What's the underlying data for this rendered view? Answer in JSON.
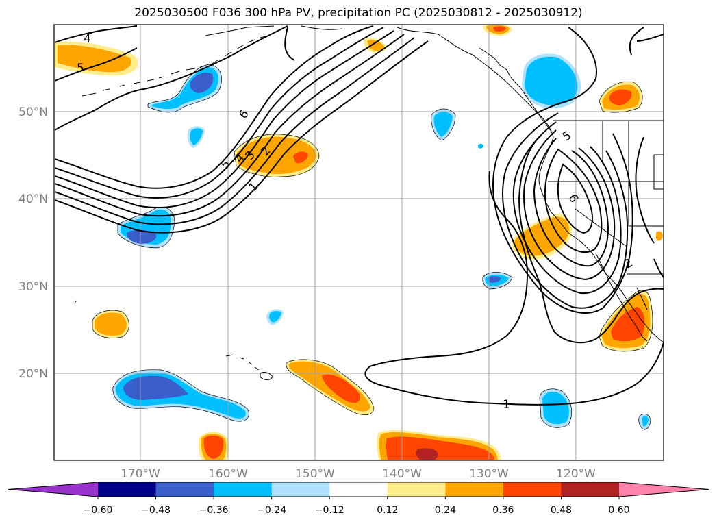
{
  "title": "2025030500 F036 300 hPa PV, precipitation PC (2025030812 - 2025030912)",
  "lat_labels": [
    "50°N",
    "40°N",
    "30°N",
    "20°N"
  ],
  "lon_labels": [
    "170°W",
    "160°W",
    "150°W",
    "140°W",
    "130°W",
    "120°W"
  ],
  "colorbar": {
    "tick_labels": [
      "−0.60",
      "−0.48",
      "−0.36",
      "−0.24",
      "−0.12",
      "0.12",
      "0.24",
      "0.36",
      "0.48",
      "0.60"
    ],
    "colors": [
      "#9932cc",
      "#00008b",
      "#3a5fcd",
      "#00bfff",
      "#b0e2ff",
      "#ffffff",
      "#ffec8b",
      "#ffa500",
      "#ff4500",
      "#b22222",
      "#ff82ab"
    ]
  },
  "contour_labels": [
    "4",
    "5",
    "6",
    "5",
    "4",
    "3",
    "2",
    "1",
    "5",
    "6",
    "2",
    "1"
  ],
  "colors": {
    "contour": "#000000",
    "coast": "#000000",
    "grid": "#a0a0a0",
    "tick_text": "#808080"
  }
}
